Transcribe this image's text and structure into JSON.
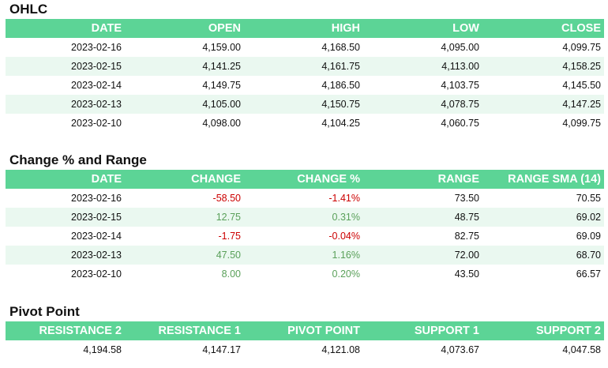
{
  "colors": {
    "header_bg": "#5cd496",
    "header_text": "#ffffff",
    "alt_row_bg": "#eaf8f0",
    "negative": "#cc0000",
    "positive": "#5aa05a"
  },
  "ohlc": {
    "title": "OHLC",
    "columns": [
      "DATE",
      "OPEN",
      "HIGH",
      "LOW",
      "CLOSE"
    ],
    "rows": [
      [
        "2023-02-16",
        "4,159.00",
        "4,168.50",
        "4,095.00",
        "4,099.75"
      ],
      [
        "2023-02-15",
        "4,141.25",
        "4,161.75",
        "4,113.00",
        "4,158.25"
      ],
      [
        "2023-02-14",
        "4,149.75",
        "4,186.50",
        "4,103.75",
        "4,145.50"
      ],
      [
        "2023-02-13",
        "4,105.00",
        "4,150.75",
        "4,078.75",
        "4,147.25"
      ],
      [
        "2023-02-10",
        "4,098.00",
        "4,104.25",
        "4,060.75",
        "4,099.75"
      ]
    ]
  },
  "change": {
    "title": "Change % and Range",
    "columns": [
      "DATE",
      "CHANGE",
      "CHANGE %",
      "RANGE",
      "RANGE SMA (14)"
    ],
    "rows": [
      [
        "2023-02-16",
        "-58.50",
        "-1.41%",
        "73.50",
        "70.55"
      ],
      [
        "2023-02-15",
        "12.75",
        "0.31%",
        "48.75",
        "69.02"
      ],
      [
        "2023-02-14",
        "-1.75",
        "-0.04%",
        "82.75",
        "69.09"
      ],
      [
        "2023-02-13",
        "47.50",
        "1.16%",
        "72.00",
        "68.70"
      ],
      [
        "2023-02-10",
        "8.00",
        "0.20%",
        "43.50",
        "66.57"
      ]
    ]
  },
  "pivot": {
    "title": "Pivot Point",
    "columns": [
      "RESISTANCE 2",
      "RESISTANCE 1",
      "PIVOT POINT",
      "SUPPORT 1",
      "SUPPORT 2"
    ],
    "rows": [
      [
        "4,194.58",
        "4,147.17",
        "4,121.08",
        "4,073.67",
        "4,047.58"
      ]
    ]
  }
}
